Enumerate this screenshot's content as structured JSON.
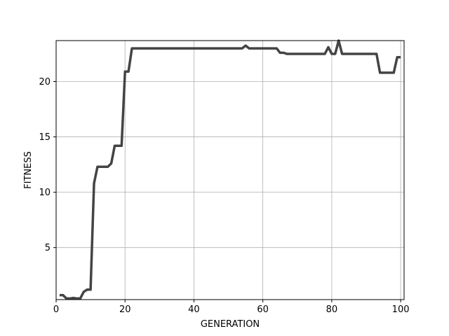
{
  "chart_data": {
    "type": "line",
    "title": "",
    "xlabel": "GENERATION",
    "ylabel": "FITNESS",
    "xlim": [
      0,
      101
    ],
    "ylim": [
      0.3,
      23.7
    ],
    "grid": true,
    "legend": "none",
    "xticks": [
      0,
      20,
      40,
      60,
      80,
      100
    ],
    "yticks": [
      5,
      10,
      15,
      20
    ],
    "colors": {
      "line": "#444444",
      "grid": "#b0b0b0",
      "axis": "#000000"
    },
    "series": [
      {
        "points": [
          [
            1,
            0.7
          ],
          [
            2,
            0.7
          ],
          [
            3,
            0.4
          ],
          [
            4,
            0.4
          ],
          [
            5,
            0.45
          ],
          [
            6,
            0.4
          ],
          [
            7,
            0.4
          ],
          [
            8,
            1.0
          ],
          [
            9,
            1.2
          ],
          [
            10,
            1.2
          ],
          [
            11,
            10.8
          ],
          [
            12,
            12.3
          ],
          [
            13,
            12.3
          ],
          [
            14,
            12.3
          ],
          [
            15,
            12.3
          ],
          [
            16,
            12.6
          ],
          [
            17,
            14.2
          ],
          [
            18,
            14.2
          ],
          [
            19,
            14.2
          ],
          [
            20,
            20.9
          ],
          [
            21,
            20.9
          ],
          [
            22,
            23.0
          ],
          [
            30,
            23.0
          ],
          [
            40,
            23.0
          ],
          [
            50,
            23.0
          ],
          [
            54,
            23.0
          ],
          [
            55,
            23.25
          ],
          [
            56,
            23.0
          ],
          [
            60,
            23.0
          ],
          [
            64,
            23.0
          ],
          [
            65,
            22.6
          ],
          [
            66,
            22.6
          ],
          [
            67,
            22.5
          ],
          [
            70,
            22.5
          ],
          [
            75,
            22.5
          ],
          [
            78,
            22.5
          ],
          [
            79,
            23.1
          ],
          [
            80,
            22.5
          ],
          [
            81,
            22.5
          ],
          [
            82,
            23.7
          ],
          [
            83,
            22.5
          ],
          [
            85,
            22.5
          ],
          [
            90,
            22.5
          ],
          [
            93,
            22.5
          ],
          [
            94,
            20.8
          ],
          [
            95,
            20.8
          ],
          [
            96,
            20.8
          ],
          [
            97,
            20.8
          ],
          [
            98,
            20.8
          ],
          [
            99,
            22.2
          ],
          [
            100,
            22.2
          ]
        ]
      }
    ]
  }
}
